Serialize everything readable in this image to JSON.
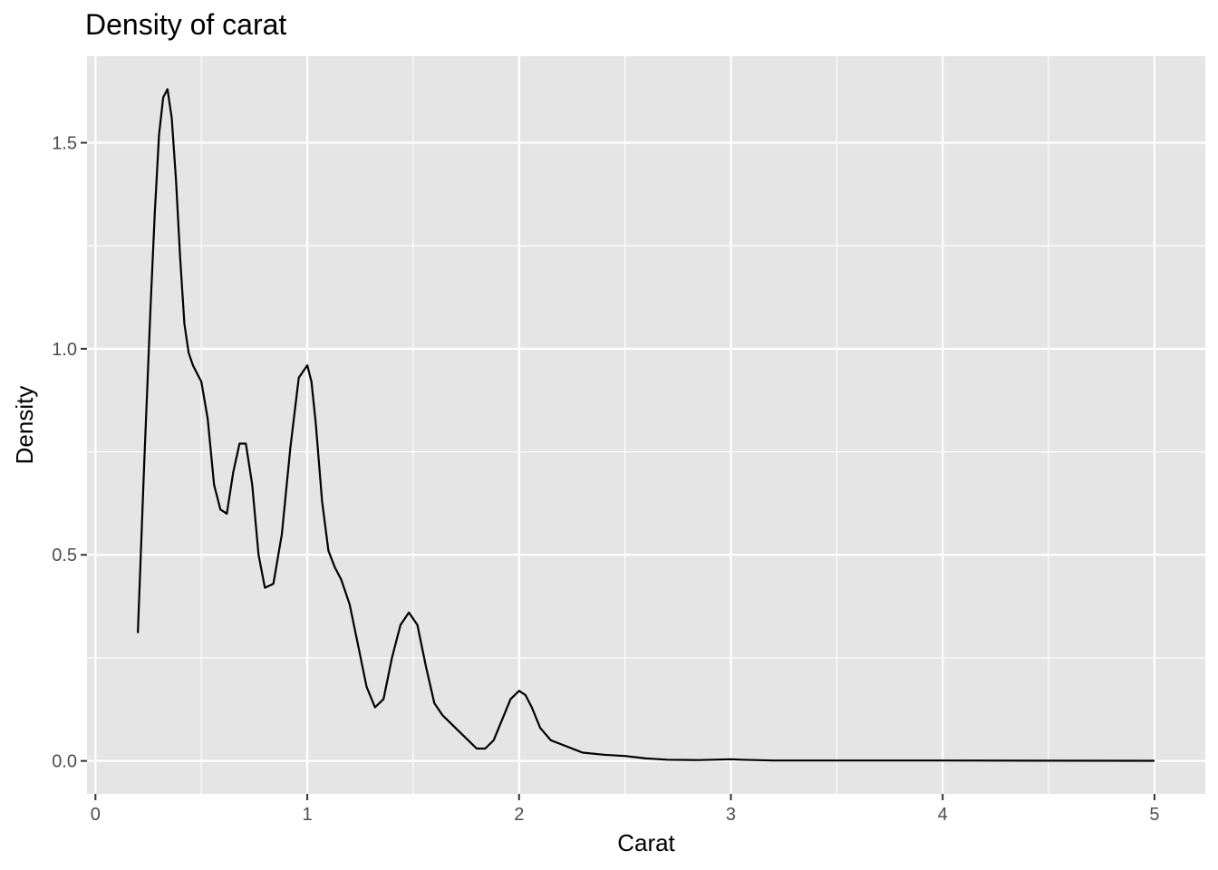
{
  "chart_data": {
    "type": "line",
    "title": "Density of carat",
    "xlabel": "Carat",
    "ylabel": "Density",
    "xlim": [
      -0.04,
      5.24
    ],
    "ylim": [
      -0.08,
      1.71
    ],
    "x_ticks": [
      0,
      1,
      2,
      3,
      4,
      5
    ],
    "x_tick_labels": [
      "0",
      "1",
      "2",
      "3",
      "4",
      "5"
    ],
    "y_ticks": [
      0.0,
      0.5,
      1.0,
      1.5
    ],
    "y_tick_labels": [
      "0.0",
      "0.5",
      "1.0",
      "1.5"
    ],
    "x_minor_ticks": [
      0.5,
      1.5,
      2.5,
      3.5,
      4.5
    ],
    "y_minor_ticks": [
      0.25,
      0.75,
      1.25
    ],
    "grid": true,
    "line_color": "#000000",
    "panel_color": "#e5e5e5",
    "grid_color": "#ffffff",
    "series": [
      {
        "x": [
          0.2,
          0.23,
          0.26,
          0.28,
          0.3,
          0.32,
          0.34,
          0.36,
          0.38,
          0.4,
          0.42,
          0.44,
          0.46,
          0.48,
          0.5,
          0.53,
          0.56,
          0.59,
          0.62,
          0.65,
          0.68,
          0.71,
          0.74,
          0.77,
          0.8,
          0.84,
          0.88,
          0.92,
          0.96,
          1.0,
          1.02,
          1.04,
          1.07,
          1.1,
          1.13,
          1.16,
          1.2,
          1.24,
          1.28,
          1.32,
          1.36,
          1.4,
          1.44,
          1.48,
          1.52,
          1.56,
          1.6,
          1.64,
          1.68,
          1.72,
          1.76,
          1.8,
          1.84,
          1.88,
          1.92,
          1.96,
          2.0,
          2.03,
          2.06,
          2.1,
          2.15,
          2.2,
          2.3,
          2.4,
          2.5,
          2.6,
          2.7,
          2.85,
          3.0,
          3.05,
          3.2,
          3.5,
          4.0,
          4.5,
          5.0
        ],
        "y": [
          0.31,
          0.72,
          1.1,
          1.33,
          1.52,
          1.61,
          1.63,
          1.56,
          1.41,
          1.22,
          1.06,
          0.99,
          0.96,
          0.94,
          0.92,
          0.83,
          0.67,
          0.61,
          0.6,
          0.7,
          0.77,
          0.77,
          0.67,
          0.5,
          0.42,
          0.43,
          0.55,
          0.76,
          0.93,
          0.96,
          0.92,
          0.82,
          0.63,
          0.51,
          0.47,
          0.44,
          0.38,
          0.28,
          0.18,
          0.13,
          0.15,
          0.25,
          0.33,
          0.36,
          0.33,
          0.23,
          0.14,
          0.11,
          0.09,
          0.07,
          0.05,
          0.03,
          0.03,
          0.05,
          0.1,
          0.15,
          0.17,
          0.16,
          0.13,
          0.08,
          0.05,
          0.04,
          0.02,
          0.015,
          0.012,
          0.006,
          0.003,
          0.002,
          0.004,
          0.003,
          0.001,
          0.001,
          0.001,
          0.0005,
          0.0003
        ]
      }
    ]
  }
}
